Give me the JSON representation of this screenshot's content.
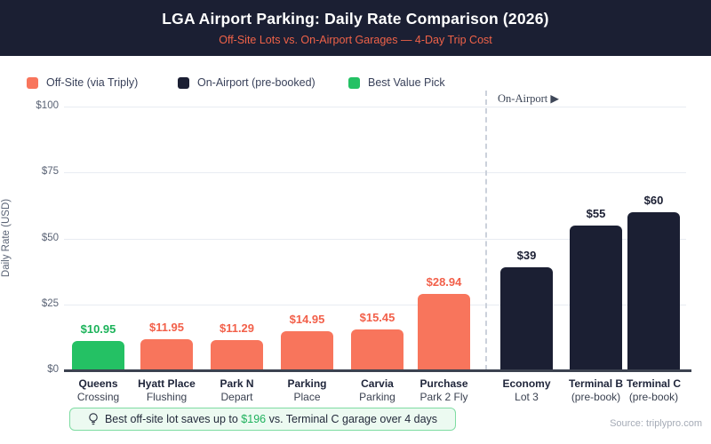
{
  "header": {
    "title": "LGA Airport Parking: Daily Rate Comparison (2026)",
    "subtitle": "Off-Site Lots vs. On-Airport Garages — 4-Day Trip Cost"
  },
  "legend": {
    "items": [
      {
        "label": "Off-Site (via Triply)",
        "color": "#F8755C"
      },
      {
        "label": "On-Airport (pre-booked)",
        "color": "#1B1F33"
      },
      {
        "label": "Best Value Pick",
        "color": "#24C164"
      }
    ]
  },
  "chart_data": {
    "type": "bar",
    "title": "LGA Airport Parking: Daily Rate Comparison (2026)",
    "subtitle": "Off-Site Lots vs. On-Airport Garages — 4-Day Trip Cost",
    "xlabel": "",
    "ylabel": "Daily Rate (USD)",
    "ylim": [
      0,
      100
    ],
    "yticks": [
      0,
      25,
      50,
      75,
      100
    ],
    "ytick_labels": [
      "$0",
      "$25",
      "$50",
      "$75",
      "$100"
    ],
    "grid": true,
    "legend_position": "top",
    "divider_label": "On-Airport ▶",
    "bars": [
      {
        "name": "Queens",
        "sub": "Crossing",
        "value": 10.95,
        "label": "$10.95",
        "group": "off-site",
        "category": "best-value"
      },
      {
        "name": "Hyatt Place",
        "sub": "Flushing",
        "value": 11.95,
        "label": "$11.95",
        "group": "off-site",
        "category": "off-site"
      },
      {
        "name": "Park N",
        "sub": "Depart",
        "value": 11.29,
        "label": "$11.29",
        "group": "off-site",
        "category": "off-site"
      },
      {
        "name": "Parking",
        "sub": "Place",
        "value": 14.95,
        "label": "$14.95",
        "group": "off-site",
        "category": "off-site"
      },
      {
        "name": "Carvia",
        "sub": "Parking",
        "value": 15.45,
        "label": "$15.45",
        "group": "off-site",
        "category": "off-site"
      },
      {
        "name": "Purchase",
        "sub": "Park 2 Fly",
        "value": 28.94,
        "label": "$28.94",
        "group": "off-site",
        "category": "off-site"
      },
      {
        "name": "Economy",
        "sub": "Lot 3",
        "value": 39,
        "label": "$39",
        "group": "on-airport",
        "category": "on-airport"
      },
      {
        "name": "Terminal B",
        "sub": "(pre-book)",
        "value": 55,
        "label": "$55",
        "group": "on-airport",
        "category": "on-airport"
      },
      {
        "name": "Terminal C",
        "sub": "(pre-book)",
        "value": 60,
        "label": "$60",
        "group": "on-airport",
        "category": "on-airport"
      }
    ]
  },
  "colors": {
    "off_site_bar": "#F8755C",
    "on_airport_bar": "#1B1F33",
    "best_value_bar": "#24C164",
    "off_site_label": "#F2604A",
    "on_airport_label": "#1B1F33",
    "best_value_label": "#1CB35A",
    "header_bg": "#1B1F33",
    "subtitle": "#EF6248",
    "callout_bg": "#ECFAF1",
    "callout_border": "#7EDCA2",
    "callout_highlight": "#1EB15C"
  },
  "callout": {
    "prefix": "Best off-site lot saves up to ",
    "highlight": "$196",
    "suffix": " vs. Terminal C garage over 4 days"
  },
  "source": "Source: triplypro.com"
}
